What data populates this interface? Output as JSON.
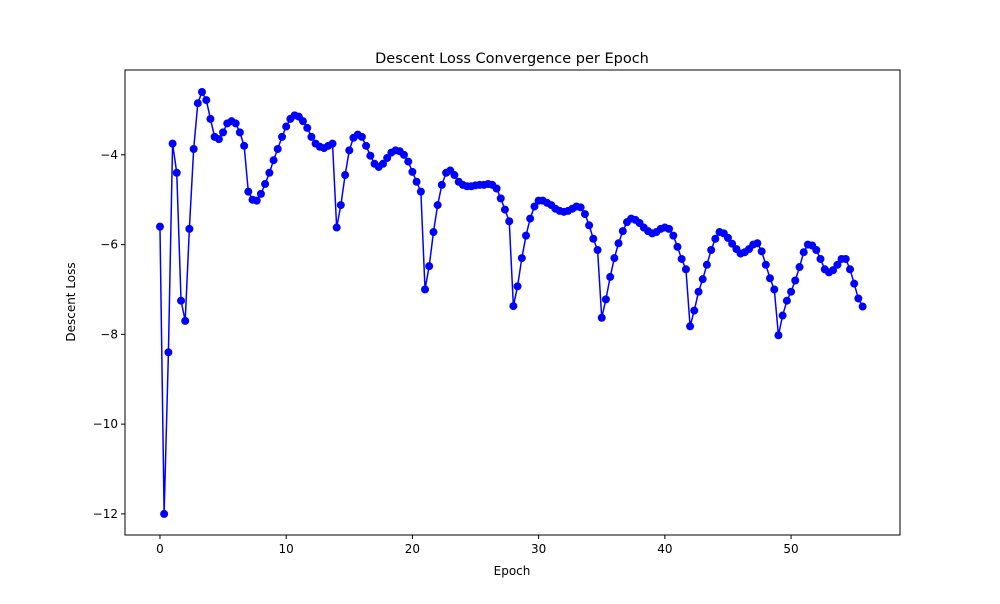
{
  "chart_data": {
    "type": "line",
    "title": "Descent Loss Convergence per Epoch",
    "x_label": "Epoch",
    "y_label": "Descent Loss",
    "x": [
      0,
      0.33,
      0.67,
      1,
      1.33,
      1.67,
      2,
      2.33,
      2.67,
      3,
      3.33,
      3.67,
      4,
      4.33,
      4.67,
      5,
      5.33,
      5.67,
      6,
      6.33,
      6.67,
      7,
      7.33,
      7.67,
      8,
      8.33,
      8.67,
      9,
      9.33,
      9.67,
      10,
      10.33,
      10.67,
      11,
      11.33,
      11.67,
      12,
      12.33,
      12.67,
      13,
      13.33,
      13.67,
      14,
      14.33,
      14.67,
      15,
      15.33,
      15.67,
      16,
      16.33,
      16.67,
      17,
      17.33,
      17.67,
      18,
      18.33,
      18.67,
      19,
      19.33,
      19.67,
      20,
      20.33,
      20.67,
      21,
      21.33,
      21.67,
      22,
      22.33,
      22.67,
      23,
      23.33,
      23.67,
      24,
      24.33,
      24.67,
      25,
      25.33,
      25.67,
      26,
      26.33,
      26.67,
      27,
      27.33,
      27.67,
      28,
      28.33,
      28.67,
      29,
      29.33,
      29.67,
      30,
      30.33,
      30.67,
      31,
      31.33,
      31.67,
      32,
      32.33,
      32.67,
      33,
      33.33,
      33.67,
      34,
      34.33,
      34.67,
      35,
      35.33,
      35.67,
      36,
      36.33,
      36.67,
      37,
      37.33,
      37.67,
      38,
      38.33,
      38.67,
      39,
      39.33,
      39.67,
      40,
      40.33,
      40.67,
      41,
      41.33,
      41.67,
      42,
      42.33,
      42.67,
      43,
      43.33,
      43.67,
      44,
      44.33,
      44.67,
      45,
      45.33,
      45.67,
      46,
      46.33,
      46.67,
      47,
      47.33,
      47.67,
      48,
      48.33,
      48.67,
      49,
      49.33,
      49.67,
      50,
      50.33,
      50.67,
      51,
      51.33,
      51.67,
      52,
      52.33,
      52.67,
      53,
      53.33,
      53.67,
      54,
      54.33,
      54.67,
      55,
      55.33,
      55.67
    ],
    "series": [
      {
        "name": "Descent Loss",
        "color": "#0000ff",
        "values": [
          -5.6,
          -12.0,
          -8.4,
          -3.75,
          -4.4,
          -7.25,
          -7.7,
          -5.65,
          -3.87,
          -2.85,
          -2.6,
          -2.78,
          -3.2,
          -3.6,
          -3.65,
          -3.5,
          -3.3,
          -3.25,
          -3.3,
          -3.5,
          -3.8,
          -4.82,
          -5.0,
          -5.02,
          -4.87,
          -4.65,
          -4.4,
          -4.12,
          -3.87,
          -3.6,
          -3.37,
          -3.2,
          -3.12,
          -3.15,
          -3.25,
          -3.4,
          -3.6,
          -3.75,
          -3.82,
          -3.85,
          -3.8,
          -3.75,
          -5.62,
          -5.12,
          -4.45,
          -3.9,
          -3.62,
          -3.55,
          -3.6,
          -3.8,
          -4.02,
          -4.2,
          -4.27,
          -4.2,
          -4.07,
          -3.95,
          -3.9,
          -3.92,
          -4.0,
          -4.15,
          -4.38,
          -4.6,
          -4.82,
          -7.0,
          -6.48,
          -5.72,
          -5.12,
          -4.67,
          -4.4,
          -4.35,
          -4.45,
          -4.6,
          -4.67,
          -4.7,
          -4.7,
          -4.68,
          -4.67,
          -4.67,
          -4.65,
          -4.67,
          -4.75,
          -4.97,
          -5.22,
          -5.48,
          -7.37,
          -6.93,
          -6.3,
          -5.8,
          -5.42,
          -5.15,
          -5.02,
          -5.02,
          -5.07,
          -5.12,
          -5.2,
          -5.25,
          -5.27,
          -5.25,
          -5.2,
          -5.15,
          -5.17,
          -5.32,
          -5.57,
          -5.87,
          -6.12,
          -7.63,
          -7.22,
          -6.72,
          -6.3,
          -5.97,
          -5.7,
          -5.5,
          -5.42,
          -5.45,
          -5.52,
          -5.62,
          -5.7,
          -5.75,
          -5.72,
          -5.65,
          -5.62,
          -5.65,
          -5.8,
          -6.05,
          -6.32,
          -6.55,
          -7.82,
          -7.47,
          -7.05,
          -6.77,
          -6.45,
          -6.12,
          -5.87,
          -5.72,
          -5.75,
          -5.85,
          -5.98,
          -6.1,
          -6.2,
          -6.17,
          -6.1,
          -6.0,
          -5.97,
          -6.15,
          -6.45,
          -6.75,
          -7.0,
          -8.02,
          -7.58,
          -7.25,
          -7.05,
          -6.8,
          -6.5,
          -6.17,
          -6.0,
          -6.02,
          -6.12,
          -6.32,
          -6.55,
          -6.62,
          -6.57,
          -6.45,
          -6.32,
          -6.32,
          -6.55,
          -6.87,
          -7.2,
          -7.38
        ]
      }
    ],
    "xlim": [
      -2.77,
      58.63
    ],
    "ylim": [
      -12.47,
      -2.11
    ],
    "xticks": [
      0,
      10,
      20,
      30,
      40,
      50
    ],
    "yticks": [
      {
        "value": -12,
        "label": "−12"
      },
      {
        "value": -10,
        "label": "−10"
      },
      {
        "value": -8,
        "label": "−8"
      },
      {
        "value": -6,
        "label": "−6"
      },
      {
        "value": -4,
        "label": "−4"
      }
    ],
    "grid": false
  }
}
